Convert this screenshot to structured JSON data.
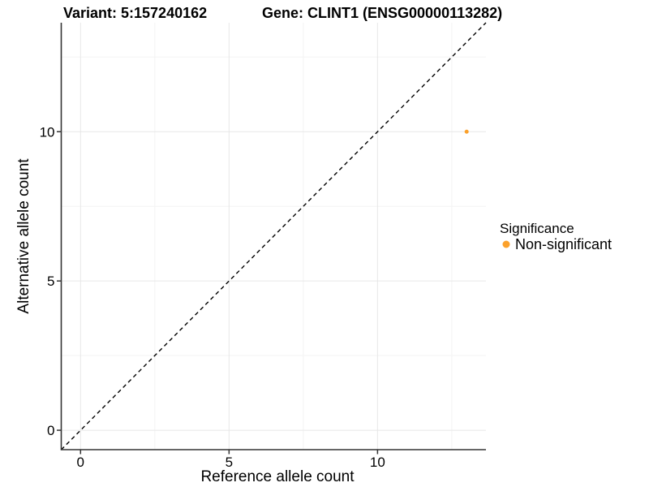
{
  "chart_data": {
    "type": "scatter",
    "title_left": "Variant: 5:157240162",
    "title_right": "Gene: CLINT1 (ENSG00000113282)",
    "xlabel": "Reference allele count",
    "ylabel": "Alternative allele count",
    "xlim": [
      -0.65,
      13.65
    ],
    "ylim": [
      -0.65,
      13.65
    ],
    "major_ticks": [
      0,
      5,
      10
    ],
    "minor_ticks": [
      2.5,
      7.5,
      12.5
    ],
    "x_tick_labels": [
      "0",
      "5",
      "10"
    ],
    "y_tick_labels": [
      "0",
      "5",
      "10"
    ],
    "grid": true,
    "points": [
      {
        "x": 13,
        "y": 10,
        "series": "Non-significant",
        "color": "#FBA12B",
        "radius": 2.5
      }
    ],
    "reference_line": {
      "type": "identity",
      "x1": -0.65,
      "y1": -0.65,
      "x2": 13.65,
      "y2": 13.65,
      "style": "dashed",
      "color": "#000000"
    },
    "legend": {
      "title": "Significance",
      "position": "right",
      "items": [
        {
          "label": "Non-significant",
          "color": "#FBA12B"
        }
      ]
    }
  },
  "colors": {
    "background": "#FFFFFF",
    "grid_major": "#E7E7E7",
    "grid_minor": "#F3F3F3",
    "axis_line": "#333333",
    "point_orange": "#FBA12B"
  }
}
